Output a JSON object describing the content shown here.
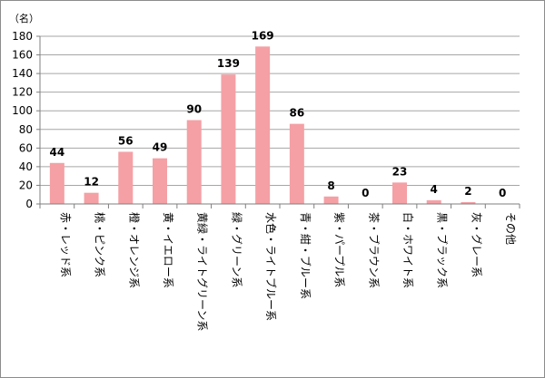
{
  "chart_data": {
    "type": "bar",
    "title": "",
    "unit_label": "（名）",
    "categories": [
      "赤・レッド系",
      "桃・ピンク系",
      "橙・オレンジ系",
      "黄・イエロー系",
      "黄緑・ライトグリーン系",
      "緑・グリーン系",
      "水色・ライトブルー系",
      "青・紺・ブルー系",
      "紫・パープル系",
      "茶・ブラウン系",
      "白・ホワイト系",
      "黒・ブラック系",
      "灰・グレー系",
      "その他"
    ],
    "values": [
      44,
      12,
      56,
      49,
      90,
      139,
      169,
      86,
      8,
      0,
      23,
      4,
      2,
      0
    ],
    "ylim": [
      0,
      180
    ],
    "yticks": [
      0,
      20,
      40,
      60,
      80,
      100,
      120,
      140,
      160,
      180
    ],
    "grid": true,
    "legend": "none",
    "bar_color": "#f4a0a5"
  }
}
